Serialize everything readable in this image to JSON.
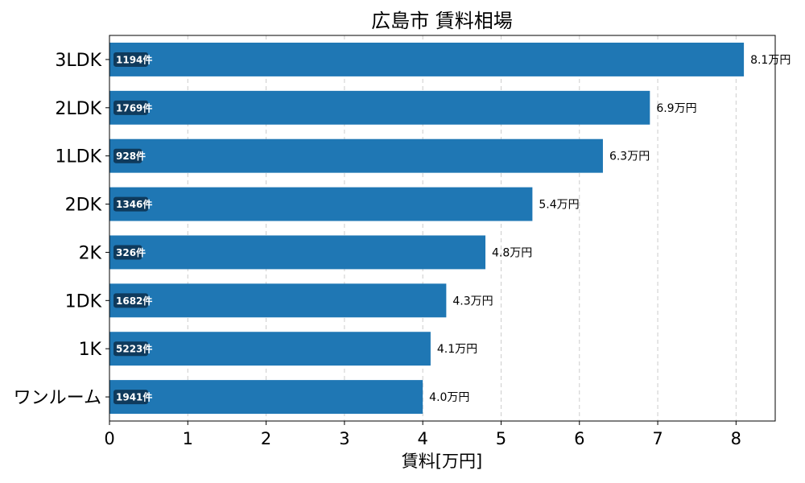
{
  "chart_data": {
    "type": "bar",
    "orientation": "horizontal",
    "title": "広島市 賃料相場",
    "xlabel": "賃料[万円]",
    "ylabel": "",
    "xlim": [
      0,
      8.5
    ],
    "xticks": [
      "0",
      "1",
      "2",
      "3",
      "4",
      "5",
      "6",
      "7",
      "8"
    ],
    "grid": "x-dashed",
    "bar_color": "#1f77b4",
    "badge_color": "#0f3a5c",
    "categories": [
      "3LDK",
      "2LDK",
      "1LDK",
      "2DK",
      "2K",
      "1DK",
      "1K",
      "ワンルーム"
    ],
    "values": [
      8.1,
      6.9,
      6.3,
      5.4,
      4.8,
      4.3,
      4.1,
      4.0
    ],
    "value_labels": [
      "8.1万円",
      "6.9万円",
      "6.3万円",
      "5.4万円",
      "4.8万円",
      "4.3万円",
      "4.1万円",
      "4.0万円"
    ],
    "counts": [
      "1194件",
      "1769件",
      "928件",
      "1346件",
      "326件",
      "1682件",
      "5223件",
      "1941件"
    ]
  }
}
